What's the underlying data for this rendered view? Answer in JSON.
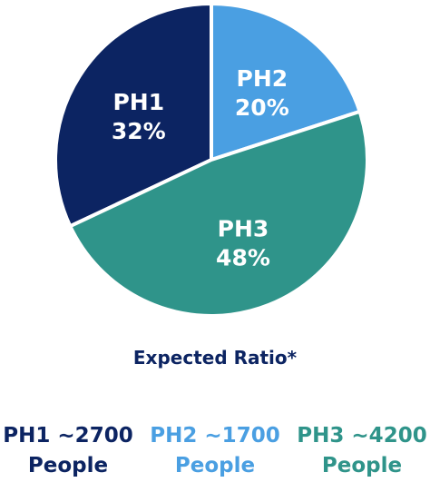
{
  "chart_data": {
    "type": "pie",
    "slices": [
      {
        "label": "PH1",
        "value": 32,
        "value_label": "32%",
        "color": "#0c2462"
      },
      {
        "label": "PH2",
        "value": 20,
        "value_label": "20%",
        "color": "#4a9fe2"
      },
      {
        "label": "PH3",
        "value": 48,
        "value_label": "48%",
        "color": "#2f948a"
      }
    ],
    "title": "Expected Ratio*",
    "legend_placement": "bottom"
  },
  "legend": [
    {
      "line1": "PH1 ~2700",
      "line2": "People",
      "color": "#0c2462"
    },
    {
      "line1": "PH2 ~1700",
      "line2": "People",
      "color": "#4a9fe2"
    },
    {
      "line1": "PH3 ~4200",
      "line2": "People",
      "color": "#2f948a"
    }
  ]
}
